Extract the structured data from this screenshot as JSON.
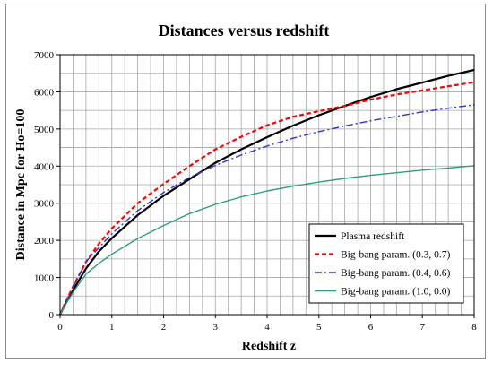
{
  "chart_data": {
    "type": "line",
    "title": "Distances versus redshift",
    "xlabel": "Redshift z",
    "ylabel": "Distance in Mpc for Ho=100",
    "xlim": [
      0,
      8
    ],
    "ylim": [
      0,
      7000
    ],
    "x_ticks": [
      "0",
      "1",
      "2",
      "3",
      "4",
      "5",
      "6",
      "7",
      "8"
    ],
    "y_ticks": [
      "0",
      "1000",
      "2000",
      "3000",
      "4000",
      "5000",
      "6000",
      "7000"
    ],
    "grid": true,
    "legend_position": "bottom-right",
    "x": [
      0,
      0.1,
      0.25,
      0.5,
      0.75,
      1,
      1.5,
      2,
      2.5,
      3,
      3.5,
      4,
      4.5,
      5,
      5.5,
      6,
      6.5,
      7,
      7.5,
      8
    ],
    "series": [
      {
        "name": "Plasma redshift",
        "color": "#000000",
        "dash": "solid",
        "values": [
          0,
          280,
          650,
          1240,
          1700,
          2060,
          2680,
          3200,
          3650,
          4090,
          4450,
          4780,
          5090,
          5370,
          5620,
          5860,
          6070,
          6250,
          6430,
          6590
        ]
      },
      {
        "name": "Big-bang param. (0.3, 0.7)",
        "color": "#ff0000",
        "dash": "dash",
        "values": [
          0,
          320,
          750,
          1420,
          1910,
          2320,
          3000,
          3520,
          4000,
          4450,
          4790,
          5100,
          5330,
          5480,
          5620,
          5790,
          5930,
          6040,
          6150,
          6260
        ]
      },
      {
        "name": "Big-bang param. (0.4, 0.6)",
        "color": "#3333cc",
        "dash": "dashdot",
        "values": [
          0,
          300,
          730,
          1430,
          1800,
          2180,
          2800,
          3290,
          3690,
          4020,
          4300,
          4540,
          4750,
          4930,
          5080,
          5220,
          5340,
          5460,
          5560,
          5650
        ]
      },
      {
        "name": "Big-bang param. (1.0, 0.0)",
        "color": "#2e9e82",
        "dash": "solid",
        "values": [
          0,
          250,
          600,
          1090,
          1380,
          1630,
          2050,
          2400,
          2720,
          2970,
          3170,
          3330,
          3460,
          3570,
          3670,
          3750,
          3820,
          3890,
          3950,
          4010
        ]
      }
    ]
  }
}
